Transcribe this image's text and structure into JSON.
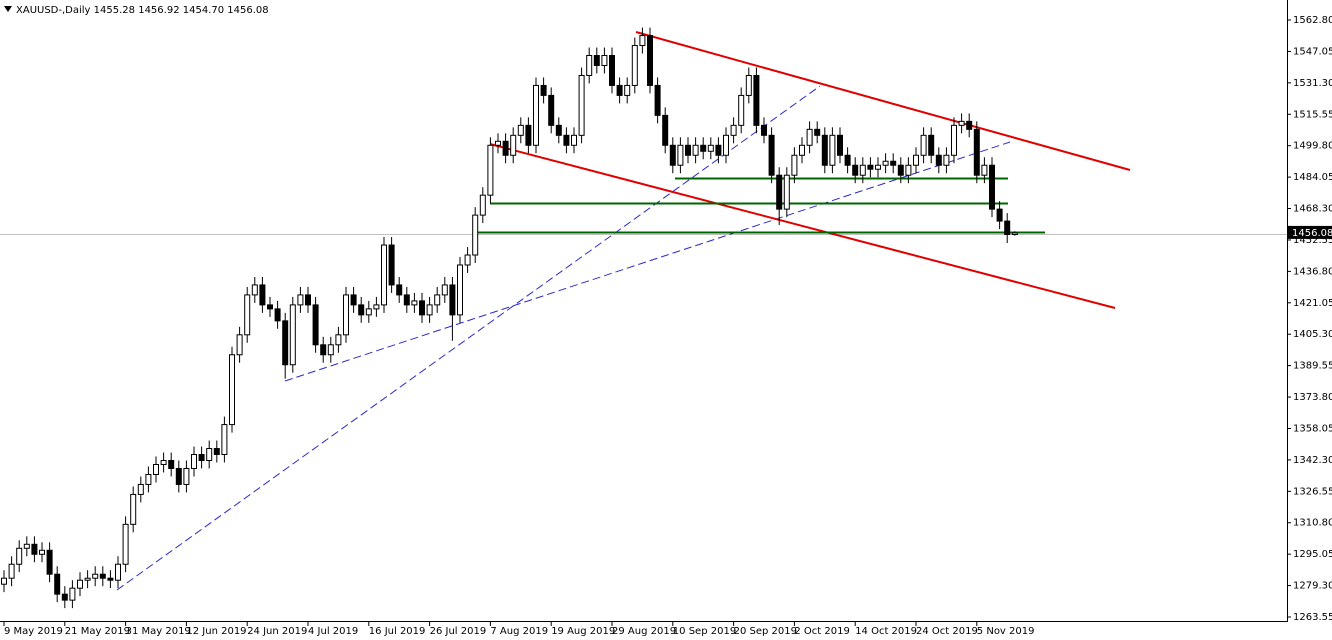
{
  "header": {
    "symbol": "XAUUSD-,Daily",
    "values": [
      "1455.28",
      "1456.92",
      "1454.70",
      "1456.08"
    ]
  },
  "chart_data": {
    "type": "candlestick",
    "categories": [
      "9 May 2019",
      null,
      null,
      null,
      null,
      null,
      null,
      null,
      "21 May 2019",
      null,
      null,
      null,
      null,
      null,
      null,
      null,
      "31 May 2019",
      null,
      null,
      null,
      null,
      null,
      null,
      null,
      "12 Jun 2019",
      null,
      null,
      null,
      null,
      null,
      null,
      null,
      "24 Jun 2019",
      null,
      null,
      null,
      null,
      null,
      null,
      null,
      "4 Jul 2019",
      null,
      null,
      null,
      null,
      null,
      null,
      null,
      "16 Jul 2019",
      null,
      null,
      null,
      null,
      null,
      null,
      null,
      "26 Jul 2019",
      null,
      null,
      null,
      null,
      null,
      null,
      null,
      "7 Aug 2019",
      null,
      null,
      null,
      null,
      null,
      null,
      null,
      "19 Aug 2019",
      null,
      null,
      null,
      null,
      null,
      null,
      null,
      "29 Aug 2019",
      null,
      null,
      null,
      null,
      null,
      null,
      null,
      "10 Sep 2019",
      null,
      null,
      null,
      null,
      null,
      null,
      null,
      "20 Sep 2019",
      null,
      null,
      null,
      null,
      null,
      null,
      null,
      "2 Oct 2019",
      null,
      null,
      null,
      null,
      null,
      null,
      null,
      "14 Oct 2019",
      null,
      null,
      null,
      null,
      null,
      null,
      null,
      "24 Oct 2019",
      null,
      null,
      null,
      null,
      null,
      null,
      null,
      "5 Nov 2019",
      null,
      null,
      null,
      null,
      null
    ],
    "open": [
      1280,
      1283,
      1290,
      1298,
      1300,
      1295,
      1297,
      1285,
      1275,
      1272,
      1278,
      1282,
      1283,
      1285,
      1283,
      1282,
      1290,
      1310,
      1325,
      1330,
      1335,
      1340,
      1342,
      1338,
      1330,
      1338,
      1345,
      1342,
      1348,
      1345,
      1360,
      1395,
      1405,
      1425,
      1430,
      1420,
      1418,
      1412,
      1390,
      1420,
      1425,
      1420,
      1400,
      1395,
      1400,
      1405,
      1425,
      1420,
      1415,
      1418,
      1420,
      1450,
      1430,
      1425,
      1420,
      1422,
      1415,
      1420,
      1425,
      1430,
      1415,
      1440,
      1445,
      1465,
      1475,
      1500,
      1502,
      1495,
      1505,
      1510,
      1500,
      1530,
      1525,
      1510,
      1505,
      1500,
      1505,
      1535,
      1545,
      1540,
      1545,
      1530,
      1525,
      1530,
      1550,
      1555,
      1530,
      1515,
      1500,
      1490,
      1500,
      1495,
      1500,
      1497,
      1500,
      1495,
      1505,
      1510,
      1525,
      1535,
      1510,
      1505,
      1485,
      1468,
      1485,
      1495,
      1500,
      1508,
      1505,
      1490,
      1505,
      1495,
      1490,
      1485,
      1490,
      1488,
      1490,
      1492,
      1490,
      1485,
      1490,
      1495,
      1505,
      1495,
      1490,
      1495,
      1510,
      1512,
      1508,
      1485,
      1490,
      1468,
      1462,
      1455.28
    ],
    "high": [
      1287,
      1294,
      1302,
      1304,
      1304,
      1301,
      1301,
      1289,
      1279,
      1282,
      1286,
      1287,
      1289,
      1289,
      1287,
      1294,
      1314,
      1329,
      1334,
      1339,
      1344,
      1346,
      1346,
      1342,
      1342,
      1349,
      1349,
      1352,
      1352,
      1364,
      1399,
      1409,
      1429,
      1434,
      1434,
      1424,
      1422,
      1416,
      1424,
      1429,
      1429,
      1424,
      1404,
      1404,
      1409,
      1429,
      1429,
      1424,
      1422,
      1424,
      1454,
      1454,
      1434,
      1429,
      1426,
      1426,
      1424,
      1429,
      1434,
      1434,
      1444,
      1449,
      1469,
      1479,
      1504,
      1506,
      1506,
      1509,
      1514,
      1514,
      1534,
      1534,
      1529,
      1514,
      1509,
      1509,
      1539,
      1549,
      1549,
      1549,
      1549,
      1534,
      1534,
      1554,
      1559,
      1559,
      1534,
      1519,
      1504,
      1504,
      1504,
      1504,
      1504,
      1504,
      1504,
      1509,
      1514,
      1529,
      1539,
      1539,
      1514,
      1509,
      1489,
      1489,
      1499,
      1504,
      1512,
      1512,
      1509,
      1509,
      1509,
      1499,
      1494,
      1494,
      1494,
      1494,
      1496,
      1496,
      1494,
      1494,
      1499,
      1509,
      1509,
      1499,
      1499,
      1514,
      1516,
      1516,
      1512,
      1494,
      1494,
      1472,
      1466,
      1456.92
    ],
    "low": [
      1276,
      1279,
      1286,
      1294,
      1291,
      1291,
      1281,
      1271,
      1268,
      1268,
      1274,
      1278,
      1279,
      1279,
      1278,
      1278,
      1286,
      1306,
      1321,
      1326,
      1331,
      1336,
      1334,
      1326,
      1326,
      1334,
      1338,
      1338,
      1341,
      1341,
      1356,
      1391,
      1401,
      1421,
      1416,
      1414,
      1408,
      1383,
      1386,
      1416,
      1416,
      1396,
      1391,
      1391,
      1396,
      1401,
      1416,
      1411,
      1411,
      1414,
      1416,
      1426,
      1421,
      1416,
      1416,
      1411,
      1411,
      1416,
      1421,
      1402,
      1411,
      1436,
      1441,
      1461,
      1471,
      1496,
      1491,
      1491,
      1501,
      1496,
      1496,
      1521,
      1506,
      1501,
      1496,
      1496,
      1501,
      1531,
      1536,
      1536,
      1526,
      1521,
      1521,
      1526,
      1546,
      1526,
      1511,
      1496,
      1486,
      1486,
      1491,
      1491,
      1493,
      1493,
      1491,
      1491,
      1501,
      1506,
      1521,
      1506,
      1501,
      1481,
      1460,
      1464,
      1481,
      1491,
      1496,
      1501,
      1486,
      1486,
      1491,
      1486,
      1481,
      1481,
      1484,
      1484,
      1486,
      1486,
      1481,
      1481,
      1486,
      1491,
      1491,
      1486,
      1486,
      1491,
      1506,
      1504,
      1481,
      1481,
      1464,
      1458,
      1451,
      1454.7
    ],
    "close": [
      1283,
      1290,
      1298,
      1300,
      1295,
      1297,
      1285,
      1275,
      1272,
      1278,
      1282,
      1283,
      1285,
      1283,
      1282,
      1290,
      1310,
      1325,
      1330,
      1335,
      1340,
      1342,
      1338,
      1330,
      1338,
      1345,
      1342,
      1348,
      1345,
      1360,
      1395,
      1405,
      1425,
      1430,
      1420,
      1418,
      1412,
      1390,
      1420,
      1425,
      1420,
      1400,
      1395,
      1400,
      1405,
      1425,
      1420,
      1415,
      1418,
      1420,
      1450,
      1430,
      1425,
      1420,
      1422,
      1415,
      1420,
      1425,
      1430,
      1415,
      1440,
      1445,
      1465,
      1475,
      1500,
      1502,
      1495,
      1505,
      1510,
      1500,
      1530,
      1525,
      1510,
      1505,
      1500,
      1505,
      1535,
      1545,
      1540,
      1545,
      1530,
      1525,
      1530,
      1550,
      1555,
      1530,
      1515,
      1500,
      1490,
      1500,
      1495,
      1500,
      1497,
      1500,
      1495,
      1505,
      1510,
      1525,
      1535,
      1510,
      1505,
      1485,
      1468,
      1485,
      1495,
      1500,
      1508,
      1505,
      1490,
      1505,
      1495,
      1490,
      1485,
      1490,
      1488,
      1490,
      1492,
      1490,
      1485,
      1490,
      1495,
      1505,
      1495,
      1490,
      1495,
      1510,
      1512,
      1508,
      1485,
      1490,
      1468,
      1462,
      1455.28,
      1456.08
    ],
    "ylim": [
      1262.05,
      1570.82
    ],
    "yticks": [
      {
        "value": 1562.8,
        "label": "1562.80"
      },
      1547.05,
      {
        "value": 1531.3,
        "label": "1531.30"
      },
      1515.55,
      {
        "value": 1499.8,
        "label": "1499.80"
      },
      1484.05,
      {
        "value": 1468.3,
        "label": "1468.30"
      },
      1452.55,
      {
        "value": 1436.8,
        "label": "1436.80"
      },
      1421.05,
      {
        "value": 1405.3,
        "label": "1405.30"
      },
      1389.55,
      {
        "value": 1373.8,
        "label": "1373.80"
      },
      1358.05,
      {
        "value": 1342.3,
        "label": "1342.30"
      },
      1326.55,
      {
        "value": 1310.8,
        "label": "1310.80"
      },
      1295.05,
      {
        "value": 1279.3,
        "label": "1279.30"
      },
      1263.55
    ],
    "up_color": "#ffffff",
    "down_color": "#000000",
    "edge_color": "#000000",
    "grid": false
  }
}
